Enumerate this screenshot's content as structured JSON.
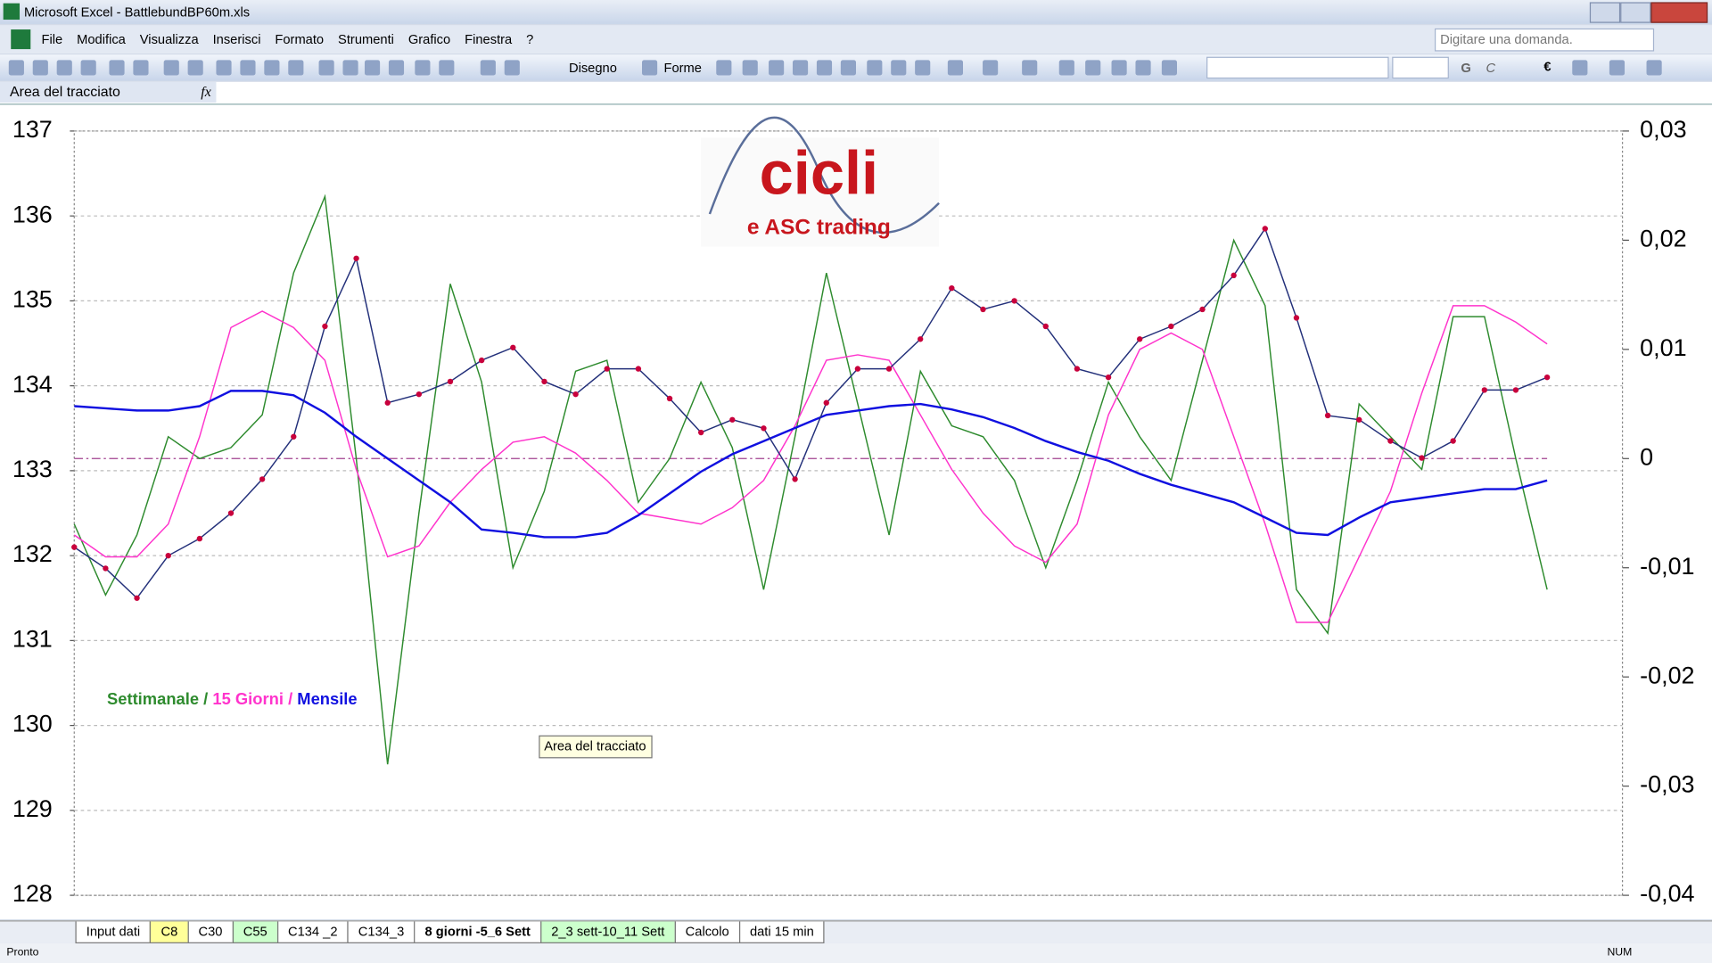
{
  "window": {
    "title": "Microsoft Excel - BattlebundBP60m.xls"
  },
  "menu": [
    "File",
    "Modifica",
    "Visualizza",
    "Inserisci",
    "Formato",
    "Strumenti",
    "Grafico",
    "Finestra",
    "?"
  ],
  "help_box": "Digitare una domanda.",
  "toolbar": {
    "drawing": "Disegno",
    "shapes": "Forme",
    "bold": "G",
    "italic": "C",
    "euro": "€"
  },
  "name_box": "Area del tracciato",
  "function_icon": "fx",
  "tooltip": "Area del tracciato",
  "logo": {
    "title": "cicli",
    "subtitle": "e ASC trading"
  },
  "sheet_tabs": [
    {
      "label": "Input dati"
    },
    {
      "label": "C8",
      "color": "#ffff99"
    },
    {
      "label": "C30"
    },
    {
      "label": "C55",
      "color": "#ccffcc"
    },
    {
      "label": "C134 _2"
    },
    {
      "label": "C134_3"
    },
    {
      "label": "8 giorni -5_6 Sett",
      "active": true
    },
    {
      "label": "2_3 sett-10_11 Sett",
      "color": "#ccffcc"
    },
    {
      "label": "Calcolo"
    },
    {
      "label": "dati 15 min"
    }
  ],
  "status": {
    "left": "Pronto",
    "right": "NUM"
  },
  "chart_data": {
    "type": "line",
    "categories": [
      null,
      null,
      null,
      null,
      null,
      null,
      null,
      null,
      null,
      null,
      null,
      null,
      null,
      null,
      null,
      null,
      null,
      null,
      null,
      null,
      null,
      null,
      null,
      null,
      null,
      null,
      null,
      null,
      null,
      null,
      null,
      null,
      null,
      null,
      null,
      null,
      null,
      null,
      null,
      null,
      null,
      null,
      null,
      null,
      null,
      null,
      null,
      null
    ],
    "ylim": [
      128,
      137
    ],
    "yticks": [
      128,
      129,
      130,
      131,
      132,
      133,
      134,
      135,
      136,
      137
    ],
    "y2lim": [
      -0.04,
      0.03
    ],
    "y2ticks": [
      {
        "value": -0.04,
        "label": "-0,04"
      },
      {
        "value": -0.03,
        "label": "-0,03"
      },
      {
        "value": -0.02,
        "label": "-0,02"
      },
      {
        "value": -0.01,
        "label": "-0,01"
      },
      0,
      {
        "value": 0.01,
        "label": "0,01"
      },
      {
        "value": 0.02,
        "label": "0,02"
      },
      {
        "value": 0.03,
        "label": "0,03"
      }
    ],
    "grid": true,
    "legend_separator": " / ",
    "ref_line": {
      "value": 0,
      "axis": "y2",
      "color": "#a0408f"
    },
    "series": [
      {
        "color": "#23307a",
        "marker_color": "#c8003c",
        "markers": true,
        "values": [
          132.1,
          131.85,
          131.5,
          132.0,
          132.2,
          132.5,
          132.9,
          133.4,
          134.7,
          135.5,
          133.8,
          133.9,
          134.05,
          134.3,
          134.45,
          134.05,
          133.9,
          134.2,
          134.2,
          133.85,
          133.45,
          133.6,
          133.5,
          132.9,
          133.8,
          134.2,
          134.2,
          134.55,
          135.15,
          134.9,
          135.0,
          134.7,
          134.2,
          134.1,
          134.55,
          134.7,
          134.9,
          135.3,
          135.85,
          134.8,
          133.65,
          133.6,
          133.35,
          133.15,
          133.35,
          133.95,
          133.95,
          134.1
        ]
      },
      {
        "name": "Settimanale",
        "color": "#2e8b2e",
        "axis": "y2",
        "values": [
          -0.006,
          -0.0125,
          -0.007,
          0.002,
          0,
          0.001,
          0.004,
          0.017,
          0.024,
          0,
          -0.028,
          -0.005,
          0.016,
          0.007,
          -0.01,
          -0.003,
          0.008,
          0.009,
          -0.004,
          0,
          0.007,
          0.001,
          -0.012,
          0.002,
          0.017,
          0.005,
          -0.007,
          0.008,
          0.003,
          0.002,
          -0.002,
          -0.01,
          -0.002,
          0.007,
          0.002,
          -0.002,
          0.009,
          0.02,
          0.014,
          -0.012,
          -0.016,
          0.005,
          0.002,
          -0.001,
          0.013,
          0.013,
          0,
          -0.012
        ]
      },
      {
        "name": "15 Giorni",
        "color": "#ff33cc",
        "axis": "y2",
        "values": [
          -0.007,
          -0.009,
          -0.009,
          -0.006,
          0.002,
          0.012,
          0.0135,
          0.012,
          0.009,
          -0.001,
          -0.009,
          -0.008,
          -0.004,
          -0.001,
          0.0015,
          0.002,
          0.0005,
          -0.002,
          -0.005,
          -0.0055,
          -0.006,
          -0.0045,
          -0.002,
          0.003,
          0.009,
          0.0095,
          0.009,
          0.004,
          -0.001,
          -0.005,
          -0.008,
          -0.0095,
          -0.006,
          0.004,
          0.01,
          0.0115,
          0.01,
          0.002,
          -0.006,
          -0.015,
          -0.015,
          -0.009,
          -0.003,
          0.006,
          0.014,
          0.014,
          0.0125,
          0.0105
        ]
      },
      {
        "name": "Mensile",
        "color": "#1010e0",
        "axis": "y2",
        "values": [
          0.0048,
          0.0046,
          0.0044,
          0.0044,
          0.0048,
          0.0062,
          0.0062,
          0.0058,
          0.0042,
          0.002,
          0,
          -0.002,
          -0.004,
          -0.0065,
          -0.0068,
          -0.0072,
          -0.0072,
          -0.0068,
          -0.0052,
          -0.0032,
          -0.0012,
          0.0004,
          0.0016,
          0.0028,
          0.004,
          0.0044,
          0.0048,
          0.005,
          0.0045,
          0.0038,
          0.0028,
          0.0016,
          0.0006,
          -0.0002,
          -0.0014,
          -0.0024,
          -0.0032,
          -0.004,
          -0.0054,
          -0.0068,
          -0.007,
          -0.0054,
          -0.004,
          -0.0036,
          -0.0032,
          -0.0028,
          -0.0028,
          -0.002
        ]
      }
    ]
  }
}
